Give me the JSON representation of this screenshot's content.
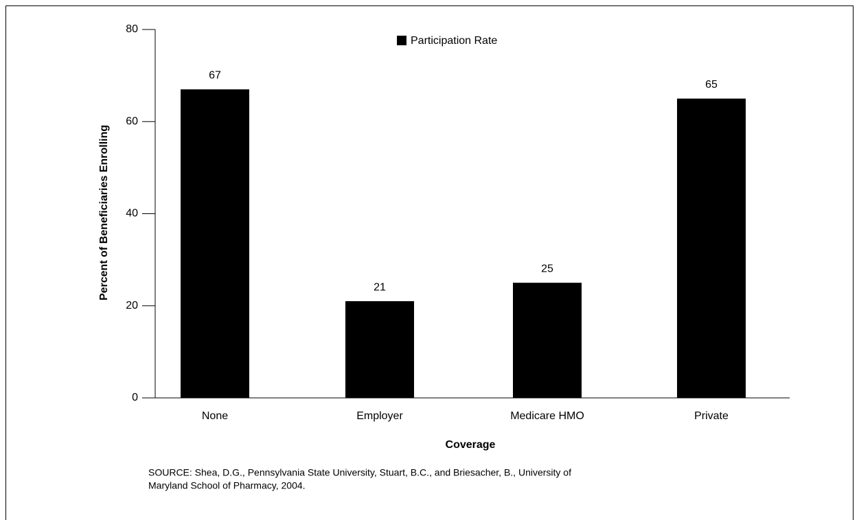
{
  "chart_data": {
    "type": "bar",
    "categories": [
      "None",
      "Employer",
      "Medicare HMO",
      "Private"
    ],
    "series": [
      {
        "name": "Participation Rate",
        "color": "#000000",
        "values": [
          67,
          21,
          25,
          65
        ]
      }
    ],
    "ylim": [
      0,
      80
    ],
    "yticks": [
      0,
      20,
      40,
      60,
      80
    ],
    "ylabel": "Percent of Beneficiaries Enrolling",
    "xlabel": "Coverage",
    "legend": "top",
    "source": [
      "SOURCE: Shea, D.G., Pennsylvania State University, Stuart, B.C., and Briesacher, B., University of",
      "Maryland School of Pharmacy, 2004."
    ]
  }
}
